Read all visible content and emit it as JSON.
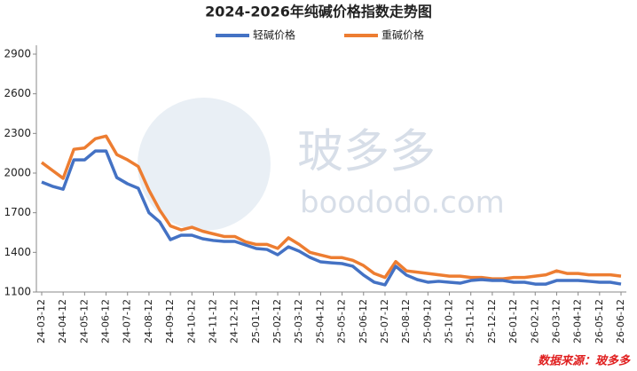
{
  "chart_data": {
    "type": "line",
    "title": "2024-2026年纯碱价格指数走势图",
    "categories": [
      "24-03-12",
      null,
      "24-04-12",
      null,
      "24-05-12",
      null,
      "24-06-12",
      null,
      "24-07-12",
      null,
      "24-08-12",
      null,
      "24-09-12",
      null,
      "24-10-12",
      null,
      "24-11-12",
      null,
      "24-12-12",
      null,
      "25-01-12",
      null,
      "25-02-12",
      null,
      "25-03-12",
      null,
      "25-04-12",
      null,
      "25-05-12",
      null,
      "25-06-12",
      null,
      "25-07-12",
      null,
      "25-08-12",
      null,
      "25-09-12",
      null,
      "25-10-12",
      null,
      "25-11-12",
      null,
      "25-12-12",
      null,
      "26-01-12",
      null,
      "26-02-12",
      null,
      "26-03-12",
      null,
      "26-04-12",
      null,
      "26-05-12",
      null,
      "26-06-12"
    ],
    "series": [
      {
        "name": "轻碱价格",
        "color": "#4472c4",
        "values": [
          1932,
          1900,
          1878,
          2100,
          2100,
          2167,
          2167,
          1966,
          1919,
          1885,
          1700,
          1630,
          1496,
          1530,
          1530,
          1503,
          1490,
          1483,
          1483,
          1456,
          1429,
          1422,
          1382,
          1442,
          1409,
          1362,
          1328,
          1321,
          1315,
          1295,
          1228,
          1174,
          1154,
          1295,
          1228,
          1194,
          1174,
          1181,
          1174,
          1167,
          1187,
          1194,
          1187,
          1187,
          1174,
          1174,
          1160,
          1160,
          1187,
          1187,
          1187,
          1181,
          1174,
          1174,
          1160
        ]
      },
      {
        "name": "重碱价格",
        "color": "#ed7d31",
        "values": [
          2080,
          2020,
          1960,
          2180,
          2190,
          2260,
          2280,
          2140,
          2100,
          2050,
          1870,
          1720,
          1600,
          1570,
          1590,
          1560,
          1540,
          1520,
          1520,
          1480,
          1460,
          1460,
          1430,
          1510,
          1460,
          1400,
          1380,
          1360,
          1360,
          1340,
          1300,
          1240,
          1210,
          1330,
          1260,
          1250,
          1240,
          1230,
          1220,
          1220,
          1210,
          1210,
          1200,
          1200,
          1210,
          1210,
          1220,
          1230,
          1260,
          1240,
          1240,
          1230,
          1230,
          1230,
          1220
        ]
      }
    ],
    "ylim": [
      1100,
      2900
    ],
    "yticks": [
      1100,
      1400,
      1700,
      2000,
      2300,
      2600,
      2900
    ],
    "watermark": "玻多多",
    "watermark_url": "boododo.com",
    "source": "数据来源：玻多多"
  }
}
